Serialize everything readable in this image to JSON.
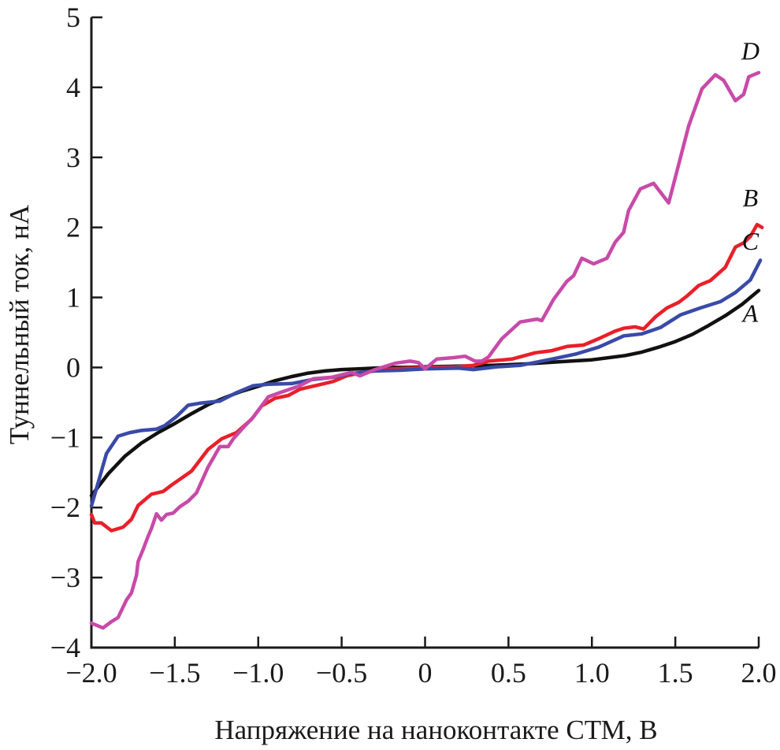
{
  "chart_data": {
    "type": "line",
    "title": "",
    "xlabel": "Напряжение на наноконтакте СТМ, В",
    "ylabel": "Туннельный ток, нА",
    "xlim": [
      -2.0,
      2.0
    ],
    "ylim": [
      -4,
      5
    ],
    "x_ticks": [
      -2.0,
      -1.5,
      -1.0,
      -0.5,
      0,
      0.5,
      1.0,
      1.5,
      2.0
    ],
    "x_tick_labels": [
      "−2.0",
      "−1.5",
      "−1.0",
      "−0.5",
      "0",
      "0.5",
      "1.0",
      "1.5",
      "2.0"
    ],
    "y_ticks": [
      -4,
      -3,
      -2,
      -1,
      0,
      1,
      2,
      3,
      4,
      5
    ],
    "y_tick_labels": [
      "−4",
      "−3",
      "−2",
      "−1",
      "0",
      "1",
      "2",
      "3",
      "4",
      "5"
    ],
    "grid": false,
    "legend": "inline labels at right end of curves",
    "series": [
      {
        "name": "A",
        "color": "#111111",
        "label_anchor": [
          1.95,
          0.65
        ],
        "points": [
          [
            -2.0,
            -1.83
          ],
          [
            -1.9,
            -1.52
          ],
          [
            -1.8,
            -1.27
          ],
          [
            -1.7,
            -1.08
          ],
          [
            -1.6,
            -0.93
          ],
          [
            -1.5,
            -0.8
          ],
          [
            -1.4,
            -0.66
          ],
          [
            -1.3,
            -0.53
          ],
          [
            -1.2,
            -0.43
          ],
          [
            -1.1,
            -0.34
          ],
          [
            -1.0,
            -0.27
          ],
          [
            -0.9,
            -0.19
          ],
          [
            -0.8,
            -0.13
          ],
          [
            -0.7,
            -0.08
          ],
          [
            -0.6,
            -0.05
          ],
          [
            -0.5,
            -0.03
          ],
          [
            -0.4,
            -0.02
          ],
          [
            -0.3,
            -0.01
          ],
          [
            -0.2,
            0.0
          ],
          [
            -0.1,
            0.0
          ],
          [
            0.0,
            0.01
          ],
          [
            0.2,
            0.02
          ],
          [
            0.4,
            0.03
          ],
          [
            0.6,
            0.05
          ],
          [
            0.8,
            0.08
          ],
          [
            1.0,
            0.11
          ],
          [
            1.2,
            0.17
          ],
          [
            1.3,
            0.22
          ],
          [
            1.4,
            0.29
          ],
          [
            1.5,
            0.37
          ],
          [
            1.6,
            0.47
          ],
          [
            1.7,
            0.6
          ],
          [
            1.8,
            0.74
          ],
          [
            1.9,
            0.9
          ],
          [
            2.0,
            1.1
          ]
        ]
      },
      {
        "name": "B",
        "color": "#e8202a",
        "label_anchor": [
          1.95,
          2.3
        ],
        "points": [
          [
            -2.0,
            -2.1
          ],
          [
            -1.98,
            -2.22
          ],
          [
            -1.94,
            -2.22
          ],
          [
            -1.88,
            -2.33
          ],
          [
            -1.81,
            -2.28
          ],
          [
            -1.76,
            -2.17
          ],
          [
            -1.72,
            -1.97
          ],
          [
            -1.64,
            -1.81
          ],
          [
            -1.57,
            -1.77
          ],
          [
            -1.52,
            -1.68
          ],
          [
            -1.4,
            -1.48
          ],
          [
            -1.3,
            -1.17
          ],
          [
            -1.22,
            -1.02
          ],
          [
            -1.13,
            -0.93
          ],
          [
            -1.04,
            -0.74
          ],
          [
            -0.98,
            -0.55
          ],
          [
            -0.9,
            -0.44
          ],
          [
            -0.82,
            -0.4
          ],
          [
            -0.75,
            -0.31
          ],
          [
            -0.64,
            -0.25
          ],
          [
            -0.55,
            -0.2
          ],
          [
            -0.47,
            -0.12
          ],
          [
            -0.35,
            -0.06
          ],
          [
            -0.2,
            -0.02
          ],
          [
            0.0,
            0.0
          ],
          [
            0.19,
            0.01
          ],
          [
            0.29,
            0.03
          ],
          [
            0.38,
            0.09
          ],
          [
            0.52,
            0.12
          ],
          [
            0.66,
            0.21
          ],
          [
            0.76,
            0.24
          ],
          [
            0.85,
            0.3
          ],
          [
            0.95,
            0.32
          ],
          [
            1.04,
            0.41
          ],
          [
            1.14,
            0.52
          ],
          [
            1.19,
            0.56
          ],
          [
            1.26,
            0.58
          ],
          [
            1.31,
            0.55
          ],
          [
            1.38,
            0.72
          ],
          [
            1.45,
            0.85
          ],
          [
            1.52,
            0.93
          ],
          [
            1.57,
            1.02
          ],
          [
            1.64,
            1.17
          ],
          [
            1.71,
            1.24
          ],
          [
            1.8,
            1.43
          ],
          [
            1.86,
            1.72
          ],
          [
            1.91,
            1.78
          ],
          [
            1.95,
            1.87
          ],
          [
            1.99,
            2.04
          ],
          [
            2.02,
            2.0
          ]
        ]
      },
      {
        "name": "C",
        "color": "#3a4aa8",
        "label_anchor": [
          1.95,
          1.68
        ],
        "points": [
          [
            -2.0,
            -1.98
          ],
          [
            -1.97,
            -1.73
          ],
          [
            -1.91,
            -1.23
          ],
          [
            -1.84,
            -0.98
          ],
          [
            -1.77,
            -0.93
          ],
          [
            -1.7,
            -0.9
          ],
          [
            -1.61,
            -0.88
          ],
          [
            -1.56,
            -0.83
          ],
          [
            -1.49,
            -0.7
          ],
          [
            -1.42,
            -0.54
          ],
          [
            -1.35,
            -0.51
          ],
          [
            -1.23,
            -0.48
          ],
          [
            -1.13,
            -0.36
          ],
          [
            -1.03,
            -0.26
          ],
          [
            -0.94,
            -0.24
          ],
          [
            -0.8,
            -0.23
          ],
          [
            -0.67,
            -0.17
          ],
          [
            -0.55,
            -0.14
          ],
          [
            -0.45,
            -0.09
          ],
          [
            -0.3,
            -0.05
          ],
          [
            -0.15,
            -0.04
          ],
          [
            0.0,
            -0.02
          ],
          [
            0.2,
            -0.01
          ],
          [
            0.29,
            -0.03
          ],
          [
            0.43,
            0.01
          ],
          [
            0.57,
            0.03
          ],
          [
            0.76,
            0.12
          ],
          [
            0.9,
            0.19
          ],
          [
            1.04,
            0.29
          ],
          [
            1.19,
            0.45
          ],
          [
            1.3,
            0.48
          ],
          [
            1.41,
            0.57
          ],
          [
            1.53,
            0.75
          ],
          [
            1.65,
            0.85
          ],
          [
            1.77,
            0.94
          ],
          [
            1.86,
            1.07
          ],
          [
            1.95,
            1.25
          ],
          [
            2.01,
            1.53
          ]
        ]
      },
      {
        "name": "D",
        "color": "#c84aa8",
        "label_anchor": [
          1.95,
          4.4
        ],
        "points": [
          [
            -2.0,
            -3.65
          ],
          [
            -1.93,
            -3.72
          ],
          [
            -1.88,
            -3.63
          ],
          [
            -1.84,
            -3.57
          ],
          [
            -1.79,
            -3.32
          ],
          [
            -1.76,
            -3.22
          ],
          [
            -1.73,
            -2.97
          ],
          [
            -1.72,
            -2.77
          ],
          [
            -1.69,
            -2.6
          ],
          [
            -1.66,
            -2.41
          ],
          [
            -1.64,
            -2.3
          ],
          [
            -1.61,
            -2.09
          ],
          [
            -1.58,
            -2.18
          ],
          [
            -1.55,
            -2.1
          ],
          [
            -1.51,
            -2.08
          ],
          [
            -1.47,
            -1.99
          ],
          [
            -1.42,
            -1.91
          ],
          [
            -1.37,
            -1.79
          ],
          [
            -1.3,
            -1.42
          ],
          [
            -1.23,
            -1.13
          ],
          [
            -1.18,
            -1.13
          ],
          [
            -1.15,
            -1.02
          ],
          [
            -1.09,
            -0.86
          ],
          [
            -1.03,
            -0.71
          ],
          [
            -0.94,
            -0.42
          ],
          [
            -0.87,
            -0.36
          ],
          [
            -0.76,
            -0.27
          ],
          [
            -0.67,
            -0.16
          ],
          [
            -0.56,
            -0.14
          ],
          [
            -0.44,
            -0.07
          ],
          [
            -0.39,
            -0.12
          ],
          [
            -0.3,
            -0.03
          ],
          [
            -0.18,
            0.06
          ],
          [
            -0.09,
            0.09
          ],
          [
            -0.04,
            0.07
          ],
          [
            0.0,
            -0.02
          ],
          [
            0.07,
            0.12
          ],
          [
            0.17,
            0.14
          ],
          [
            0.24,
            0.16
          ],
          [
            0.3,
            0.09
          ],
          [
            0.34,
            0.09
          ],
          [
            0.38,
            0.15
          ],
          [
            0.46,
            0.41
          ],
          [
            0.57,
            0.65
          ],
          [
            0.67,
            0.69
          ],
          [
            0.7,
            0.67
          ],
          [
            0.77,
            0.97
          ],
          [
            0.85,
            1.23
          ],
          [
            0.89,
            1.31
          ],
          [
            0.94,
            1.56
          ],
          [
            1.01,
            1.48
          ],
          [
            1.09,
            1.56
          ],
          [
            1.14,
            1.79
          ],
          [
            1.19,
            1.93
          ],
          [
            1.22,
            2.24
          ],
          [
            1.29,
            2.55
          ],
          [
            1.37,
            2.63
          ],
          [
            1.46,
            2.35
          ],
          [
            1.58,
            3.45
          ],
          [
            1.66,
            3.98
          ],
          [
            1.74,
            4.18
          ],
          [
            1.79,
            4.1
          ],
          [
            1.86,
            3.81
          ],
          [
            1.91,
            3.9
          ],
          [
            1.94,
            4.15
          ],
          [
            2.0,
            4.21
          ]
        ]
      }
    ]
  }
}
